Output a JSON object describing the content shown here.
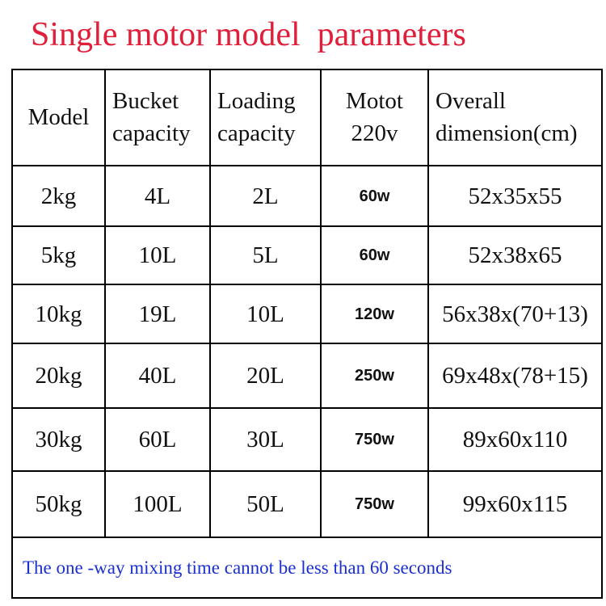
{
  "header": {
    "title": "Single motor model  parameters"
  },
  "table": {
    "columns": [
      [
        "Model"
      ],
      [
        "Bucket",
        "capacity"
      ],
      [
        "Loading",
        "capacity"
      ],
      [
        "Motot",
        "220v"
      ],
      [
        "Overall",
        "dimension(cm)"
      ]
    ],
    "rows": [
      [
        "2kg",
        "4L",
        "2L",
        "60w",
        "52x35x55"
      ],
      [
        "5kg",
        "10L",
        "5L",
        "60w",
        "52x38x65"
      ],
      [
        "10kg",
        "19L",
        "10L",
        "120w",
        "56x38x(70+13)"
      ],
      [
        "20kg",
        "40L",
        "20L",
        "250w",
        "69x48x(78+15)"
      ],
      [
        "30kg",
        "60L",
        "30L",
        "750w",
        "89x60x110"
      ],
      [
        "50kg",
        "100L",
        "50L",
        "750w",
        "99x60x115"
      ]
    ],
    "note": "The one -way mixing time cannot be less than 60 seconds"
  }
}
